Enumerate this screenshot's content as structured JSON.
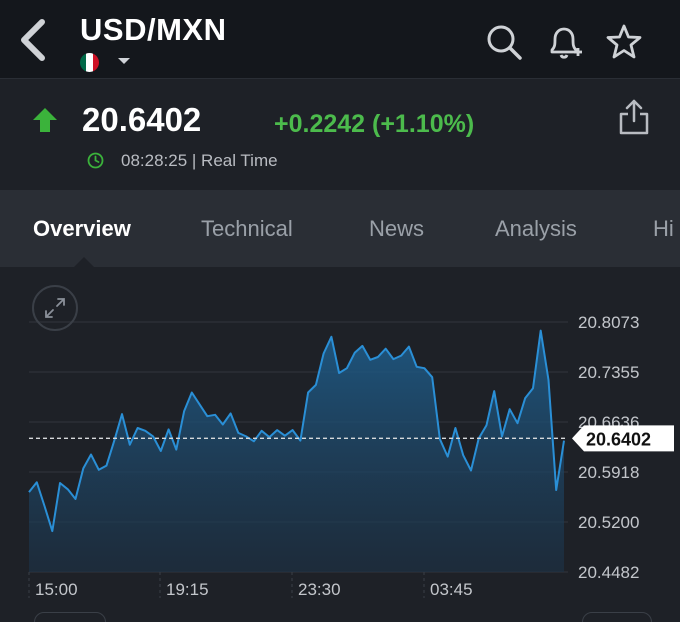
{
  "header": {
    "title": "USD/MXN",
    "flag_colors": [
      "#006847",
      "#ffffff",
      "#ce1126"
    ]
  },
  "quote": {
    "price": "20.6402",
    "change": "+0.2242 (+1.10%)",
    "time": "08:28:25 | Real Time",
    "direction": "up",
    "up_color": "#4cbb4c"
  },
  "tabs": [
    {
      "label": "Overview",
      "active": true
    },
    {
      "label": "Technical",
      "active": false
    },
    {
      "label": "News",
      "active": false
    },
    {
      "label": "Analysis",
      "active": false
    },
    {
      "label": "Hi",
      "active": false
    }
  ],
  "chart_data": {
    "type": "area",
    "y_ticks": [
      "20.8073",
      "20.7355",
      "20.6636",
      "20.5918",
      "20.5200",
      "20.4482"
    ],
    "ylim": [
      20.4482,
      20.8073
    ],
    "x_ticks": [
      "15:00",
      "19:15",
      "23:30",
      "03:45"
    ],
    "current_price_label": "20.6402",
    "current_price": 20.6402,
    "line_color": "#2a8fd6",
    "grid": true,
    "values": [
      20.563,
      20.577,
      20.543,
      20.507,
      20.576,
      20.567,
      20.553,
      20.597,
      20.617,
      20.595,
      20.601,
      20.637,
      20.675,
      20.631,
      20.655,
      20.651,
      20.643,
      20.622,
      20.653,
      20.624,
      20.679,
      20.706,
      20.689,
      20.672,
      20.674,
      20.66,
      20.676,
      20.648,
      20.643,
      20.636,
      20.651,
      20.642,
      20.652,
      20.644,
      20.652,
      20.637,
      20.706,
      20.717,
      20.762,
      20.786,
      20.734,
      20.741,
      20.763,
      20.773,
      20.753,
      20.757,
      20.769,
      20.754,
      20.759,
      20.772,
      20.743,
      20.741,
      20.728,
      20.639,
      20.614,
      20.655,
      20.616,
      20.594,
      20.64,
      20.659,
      20.708,
      20.643,
      20.682,
      20.662,
      20.698,
      20.712,
      20.795,
      20.724,
      20.566,
      20.637
    ]
  }
}
